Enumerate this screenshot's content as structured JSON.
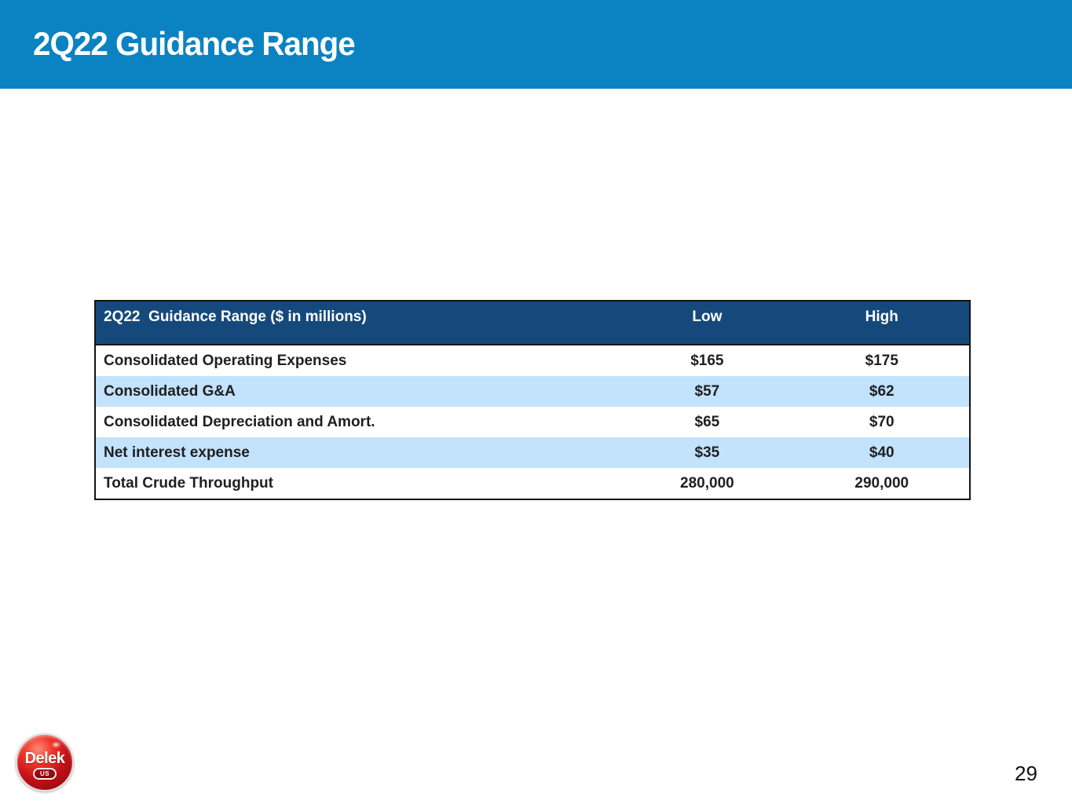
{
  "slide": {
    "title": "2Q22 Guidance Range",
    "page_number": "29"
  },
  "logo": {
    "brand": "Delek",
    "sub": "US"
  },
  "table": {
    "header": {
      "label": "2Q22  Guidance Range ($ in millions)",
      "low": "Low",
      "high": "High"
    },
    "rows": [
      {
        "label": "Consolidated Operating Expenses",
        "low": "$165",
        "high": "$175"
      },
      {
        "label": "Consolidated G&A",
        "low": "$57",
        "high": "$62"
      },
      {
        "label": "Consolidated Depreciation and Amort.",
        "low": "$65",
        "high": "$70"
      },
      {
        "label": "Net interest expense",
        "low": "$35",
        "high": "$40"
      },
      {
        "label": "Total Crude Throughput",
        "low": "280,000",
        "high": "290,000"
      }
    ]
  },
  "colors": {
    "banner_blue": "#0b82c1",
    "table_header_navy": "#16497b",
    "row_alt_blue": "#c3e2fb",
    "text_dark": "#1f1f1f",
    "logo_red": "#c41118"
  }
}
